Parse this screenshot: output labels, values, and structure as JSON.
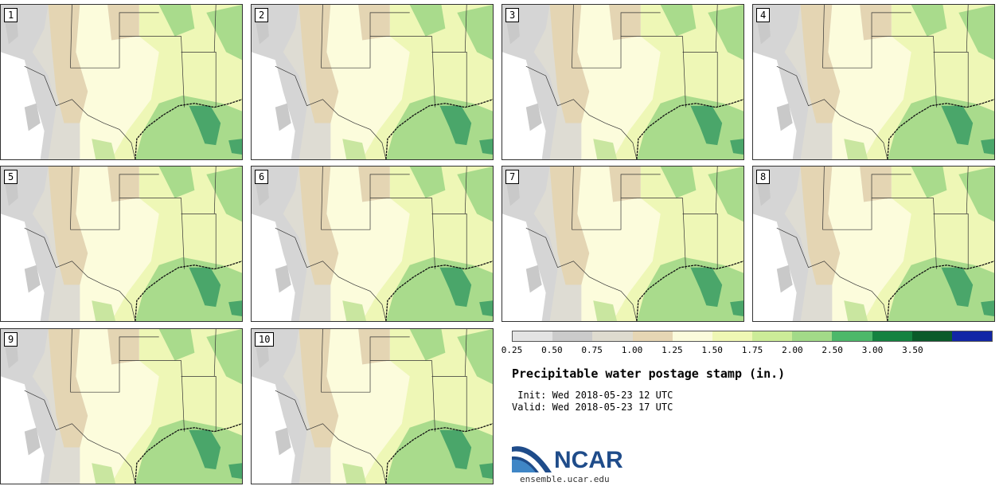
{
  "product": {
    "title": "Precipitable water postage stamp (in.)",
    "init": " Init: Wed 2018-05-23 12 UTC",
    "valid": "Valid: Wed 2018-05-23 17 UTC"
  },
  "members": [
    "1",
    "2",
    "3",
    "4",
    "5",
    "6",
    "7",
    "8",
    "9",
    "10"
  ],
  "colorbar": {
    "ticks": [
      "0.25",
      "0.50",
      "0.75",
      "1.00",
      "1.25",
      "1.50",
      "1.75",
      "2.00",
      "2.50",
      "3.00",
      "3.50"
    ],
    "colors": [
      "#e3e3e3",
      "#cbcbcb",
      "#dedbcf",
      "#e6d6b4",
      "#fbfbdc",
      "#eff7b4",
      "#ccec98",
      "#a2da88",
      "#4db86a",
      "#148240",
      "#0b5a2a",
      "#1226a6"
    ]
  },
  "map_colors": {
    "very_low": "#d5d5d5",
    "low": "#dedcd3",
    "tan": "#e4d5b3",
    "cream": "#fcfcdc",
    "light_green": "#eef7b6",
    "mid_green": "#a9db8c",
    "dark_green": "#4aa66a",
    "white": "#ffffff",
    "border": "#333333"
  },
  "logo": {
    "name": "NCAR",
    "url": "ensemble.ucar.edu",
    "colors": {
      "blue": "#1f4c8a",
      "light_blue": "#3f86c6"
    }
  }
}
